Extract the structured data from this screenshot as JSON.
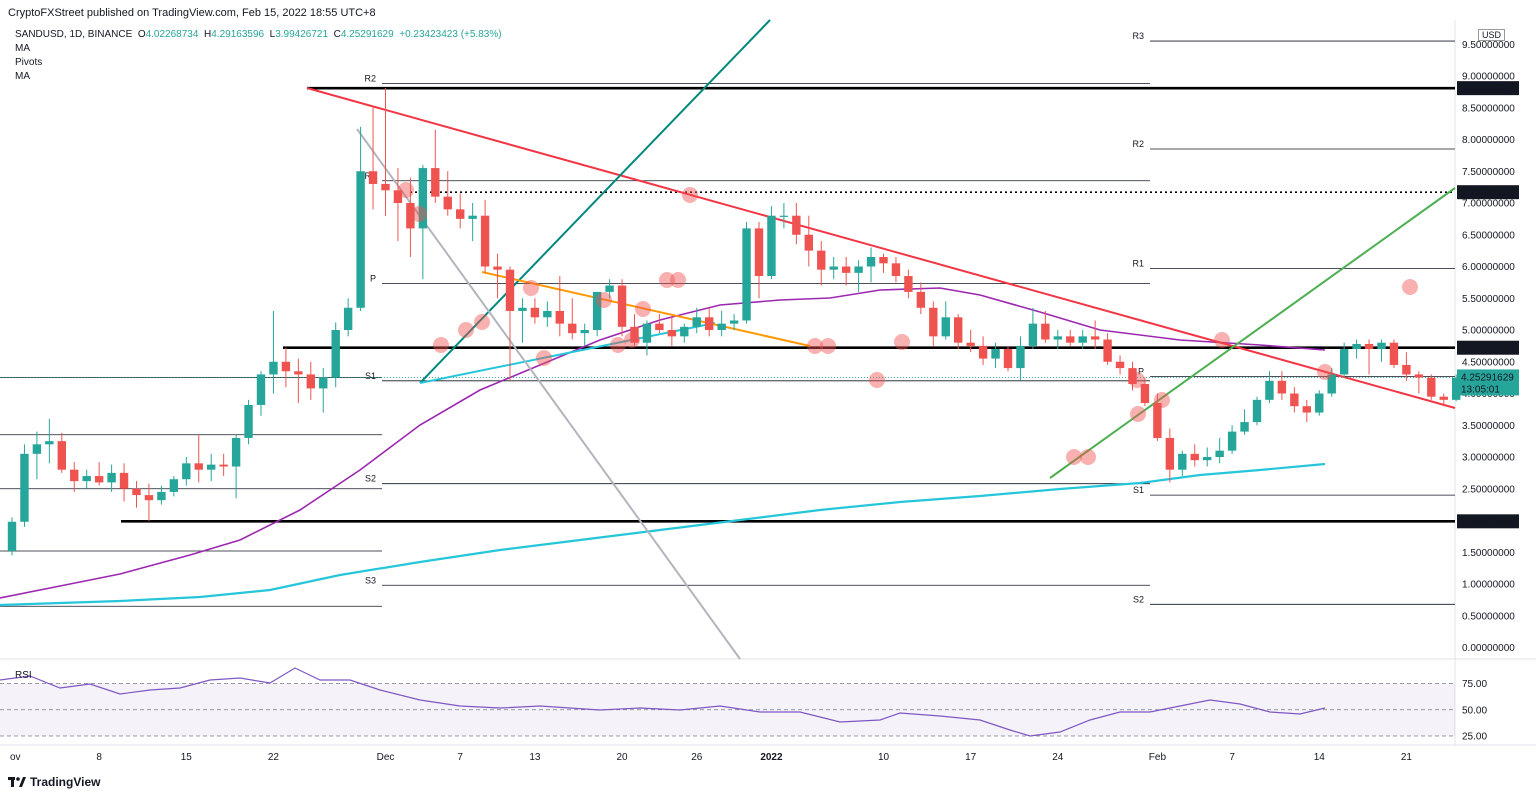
{
  "header": {
    "publisher": "CryptoFXStreet published on TradingView.com, Feb 15, 2022 18:55 UTC+8"
  },
  "legend": {
    "symbol": "SANDUSD, 1D, BINANCE",
    "ohlc": {
      "o_label": "O",
      "o": "4.02268734",
      "h_label": "H",
      "h": "4.29163596",
      "l_label": "L",
      "l": "3.99426721",
      "c_label": "C",
      "c": "4.25291629",
      "change": "+0.23423423 (+5.83%)"
    },
    "indicators": [
      "MA",
      "Pivots",
      "MA"
    ],
    "rsi_label": "RSI"
  },
  "currency": "USD",
  "footer": {
    "brand": "TradingView"
  },
  "colors": {
    "up": "#26a69a",
    "down": "#ef5350",
    "ma50": "#9c27b0",
    "ma200": "#26c6da",
    "resistance": "#f23645",
    "uptrend": "#4caf50",
    "teal_line": "#00897b",
    "grey_line": "#b2b5be",
    "orange_line": "#ff9800",
    "rsi": "#7e57c2"
  },
  "chart_data": {
    "type": "candlestick",
    "title": "SANDUSD, 1D, BINANCE",
    "ylim": [
      -0.1,
      9.75
    ],
    "y_ticks": [
      "0.00000000",
      "0.50000000",
      "1.00000000",
      "1.50000000",
      "2.00000000",
      "2.50000000",
      "3.00000000",
      "3.50000000",
      "4.00000000",
      "4.50000000",
      "5.00000000",
      "5.50000000",
      "6.00000000",
      "6.50000000",
      "7.00000000",
      "7.50000000",
      "8.00000000",
      "8.50000000",
      "9.00000000",
      "9.50000000"
    ],
    "x_ticks": [
      "ov",
      "8",
      "15",
      "22",
      "Dec",
      "7",
      "13",
      "20",
      "26",
      "2022",
      "10",
      "17",
      "24",
      "Feb",
      "7",
      "14",
      "21"
    ],
    "highlighted_levels": [
      {
        "label": "8.80878547",
        "value": 8.80878547
      },
      {
        "label": "7.17027123",
        "value": 7.17027123
      },
      {
        "label": "4.72085928",
        "value": 4.72085928
      },
      {
        "label": "1.98703440",
        "value": 1.9870344
      }
    ],
    "last_price": {
      "label": "4.25291629",
      "countdown": "13:05:01",
      "value": 4.25291629
    },
    "pivots": [
      {
        "period": "Nov",
        "levels": [
          {
            "name": "",
            "value": 3.35
          },
          {
            "name": "",
            "value": 2.5
          },
          {
            "name": "",
            "value": 1.52
          },
          {
            "name": "",
            "value": 0.65
          },
          {
            "name": "",
            "value": 4.25
          }
        ]
      },
      {
        "period": "Dec",
        "levels": [
          {
            "name": "R2",
            "value": 8.88
          },
          {
            "name": "R1",
            "value": 7.35
          },
          {
            "name": "P",
            "value": 5.73
          },
          {
            "name": "S1",
            "value": 4.2
          },
          {
            "name": "S2",
            "value": 2.58
          },
          {
            "name": "S3",
            "value": 0.98
          }
        ]
      },
      {
        "period": "Jan",
        "levels": [
          {
            "name": "R3",
            "value": 9.55
          },
          {
            "name": "R2",
            "value": 7.85
          },
          {
            "name": "R1",
            "value": 5.97
          },
          {
            "name": "P",
            "value": 4.27
          },
          {
            "name": "S1",
            "value": 2.4
          },
          {
            "name": "S2",
            "value": 0.68
          }
        ]
      }
    ],
    "candles": [
      {
        "date": "2021-11-01",
        "o": 1.52,
        "h": 2.05,
        "l": 1.45,
        "c": 1.98
      },
      {
        "date": "2021-11-02",
        "o": 1.98,
        "h": 3.2,
        "l": 1.9,
        "c": 3.05
      },
      {
        "date": "2021-11-03",
        "o": 3.05,
        "h": 3.4,
        "l": 2.65,
        "c": 3.2
      },
      {
        "date": "2021-11-04",
        "o": 3.2,
        "h": 3.6,
        "l": 2.9,
        "c": 3.25
      },
      {
        "date": "2021-11-05",
        "o": 3.25,
        "h": 3.38,
        "l": 2.75,
        "c": 2.8
      },
      {
        "date": "2021-11-06",
        "o": 2.8,
        "h": 2.92,
        "l": 2.45,
        "c": 2.62
      },
      {
        "date": "2021-11-07",
        "o": 2.62,
        "h": 2.8,
        "l": 2.5,
        "c": 2.7
      },
      {
        "date": "2021-11-08",
        "o": 2.7,
        "h": 2.92,
        "l": 2.55,
        "c": 2.6
      },
      {
        "date": "2021-11-09",
        "o": 2.6,
        "h": 2.88,
        "l": 2.45,
        "c": 2.75
      },
      {
        "date": "2021-11-10",
        "o": 2.75,
        "h": 2.9,
        "l": 2.3,
        "c": 2.5
      },
      {
        "date": "2021-11-11",
        "o": 2.5,
        "h": 2.62,
        "l": 2.2,
        "c": 2.4
      },
      {
        "date": "2021-11-12",
        "o": 2.4,
        "h": 2.58,
        "l": 1.99,
        "c": 2.32
      },
      {
        "date": "2021-11-13",
        "o": 2.32,
        "h": 2.55,
        "l": 2.25,
        "c": 2.45
      },
      {
        "date": "2021-11-14",
        "o": 2.45,
        "h": 2.7,
        "l": 2.38,
        "c": 2.65
      },
      {
        "date": "2021-11-15",
        "o": 2.65,
        "h": 3.0,
        "l": 2.55,
        "c": 2.9
      },
      {
        "date": "2021-11-16",
        "o": 2.9,
        "h": 3.35,
        "l": 2.6,
        "c": 2.8
      },
      {
        "date": "2021-11-17",
        "o": 2.8,
        "h": 3.05,
        "l": 2.62,
        "c": 2.88
      },
      {
        "date": "2021-11-18",
        "o": 2.88,
        "h": 3.05,
        "l": 2.7,
        "c": 2.85
      },
      {
        "date": "2021-11-19",
        "o": 2.85,
        "h": 3.35,
        "l": 2.35,
        "c": 3.3
      },
      {
        "date": "2021-11-20",
        "o": 3.3,
        "h": 3.9,
        "l": 3.2,
        "c": 3.82
      },
      {
        "date": "2021-11-21",
        "o": 3.82,
        "h": 4.35,
        "l": 3.65,
        "c": 4.3
      },
      {
        "date": "2021-11-22",
        "o": 4.3,
        "h": 5.3,
        "l": 4.0,
        "c": 4.5
      },
      {
        "date": "2021-11-23",
        "o": 4.5,
        "h": 4.72,
        "l": 4.1,
        "c": 4.35
      },
      {
        "date": "2021-11-24",
        "o": 4.35,
        "h": 4.55,
        "l": 3.85,
        "c": 4.3
      },
      {
        "date": "2021-11-25",
        "o": 4.3,
        "h": 4.5,
        "l": 3.9,
        "c": 4.08
      },
      {
        "date": "2021-11-26",
        "o": 4.08,
        "h": 4.4,
        "l": 3.7,
        "c": 4.25
      },
      {
        "date": "2021-11-27",
        "o": 4.25,
        "h": 5.12,
        "l": 4.1,
        "c": 5.0
      },
      {
        "date": "2021-11-28",
        "o": 5.0,
        "h": 5.5,
        "l": 4.9,
        "c": 5.35
      },
      {
        "date": "2021-11-29",
        "o": 5.35,
        "h": 8.2,
        "l": 5.3,
        "c": 7.5
      },
      {
        "date": "2021-11-30",
        "o": 7.5,
        "h": 8.5,
        "l": 6.9,
        "c": 7.3
      },
      {
        "date": "2021-12-01",
        "o": 7.3,
        "h": 8.81,
        "l": 6.8,
        "c": 7.2
      },
      {
        "date": "2021-12-02",
        "o": 7.2,
        "h": 7.55,
        "l": 6.4,
        "c": 7.0
      },
      {
        "date": "2021-12-03",
        "o": 7.0,
        "h": 7.4,
        "l": 6.15,
        "c": 6.6
      },
      {
        "date": "2021-12-04",
        "o": 6.6,
        "h": 7.6,
        "l": 5.8,
        "c": 7.55
      },
      {
        "date": "2021-12-05",
        "o": 7.55,
        "h": 8.15,
        "l": 7.0,
        "c": 7.1
      },
      {
        "date": "2021-12-06",
        "o": 7.1,
        "h": 7.5,
        "l": 6.8,
        "c": 6.9
      },
      {
        "date": "2021-12-07",
        "o": 6.9,
        "h": 7.15,
        "l": 6.6,
        "c": 6.75
      },
      {
        "date": "2021-12-08",
        "o": 6.75,
        "h": 7.0,
        "l": 6.4,
        "c": 6.8
      },
      {
        "date": "2021-12-09",
        "o": 6.8,
        "h": 7.05,
        "l": 5.9,
        "c": 6.0
      },
      {
        "date": "2021-12-10",
        "o": 6.0,
        "h": 6.2,
        "l": 5.5,
        "c": 5.95
      },
      {
        "date": "2021-12-11",
        "o": 5.95,
        "h": 6.0,
        "l": 4.2,
        "c": 5.3
      },
      {
        "date": "2021-12-12",
        "o": 5.3,
        "h": 5.5,
        "l": 4.8,
        "c": 5.35
      },
      {
        "date": "2021-12-13",
        "o": 5.35,
        "h": 5.5,
        "l": 5.1,
        "c": 5.2
      },
      {
        "date": "2021-12-14",
        "o": 5.2,
        "h": 5.45,
        "l": 5.05,
        "c": 5.3
      },
      {
        "date": "2021-12-15",
        "o": 5.3,
        "h": 5.85,
        "l": 4.9,
        "c": 5.1
      },
      {
        "date": "2021-12-16",
        "o": 5.1,
        "h": 5.5,
        "l": 4.85,
        "c": 4.95
      },
      {
        "date": "2021-12-17",
        "o": 4.95,
        "h": 5.1,
        "l": 4.75,
        "c": 5.0
      },
      {
        "date": "2021-12-18",
        "o": 5.0,
        "h": 5.6,
        "l": 4.9,
        "c": 5.6
      },
      {
        "date": "2021-12-19",
        "o": 5.6,
        "h": 5.8,
        "l": 5.5,
        "c": 5.7
      },
      {
        "date": "2021-12-20",
        "o": 5.7,
        "h": 5.8,
        "l": 4.9,
        "c": 5.05
      },
      {
        "date": "2021-12-21",
        "o": 5.05,
        "h": 5.25,
        "l": 4.75,
        "c": 4.8
      },
      {
        "date": "2021-12-22",
        "o": 4.8,
        "h": 5.15,
        "l": 4.6,
        "c": 5.1
      },
      {
        "date": "2021-12-23",
        "o": 5.1,
        "h": 5.25,
        "l": 4.95,
        "c": 5.0
      },
      {
        "date": "2021-12-24",
        "o": 5.0,
        "h": 5.2,
        "l": 4.75,
        "c": 4.9
      },
      {
        "date": "2021-12-25",
        "o": 4.9,
        "h": 5.1,
        "l": 4.8,
        "c": 5.05
      },
      {
        "date": "2021-12-26",
        "o": 5.05,
        "h": 5.35,
        "l": 4.95,
        "c": 5.2
      },
      {
        "date": "2021-12-27",
        "o": 5.2,
        "h": 5.35,
        "l": 4.9,
        "c": 5.0
      },
      {
        "date": "2021-12-28",
        "o": 5.0,
        "h": 5.3,
        "l": 4.9,
        "c": 5.1
      },
      {
        "date": "2021-12-29",
        "o": 5.1,
        "h": 5.25,
        "l": 5.0,
        "c": 5.15
      },
      {
        "date": "2021-12-30",
        "o": 5.15,
        "h": 6.7,
        "l": 5.1,
        "c": 6.6
      },
      {
        "date": "2021-12-31",
        "o": 6.6,
        "h": 6.7,
        "l": 5.5,
        "c": 5.85
      },
      {
        "date": "2022-01-01",
        "o": 5.85,
        "h": 6.95,
        "l": 5.8,
        "c": 6.8
      },
      {
        "date": "2022-01-02",
        "o": 6.8,
        "h": 7.0,
        "l": 6.6,
        "c": 6.8
      },
      {
        "date": "2022-01-03",
        "o": 6.8,
        "h": 7.0,
        "l": 6.35,
        "c": 6.5
      },
      {
        "date": "2022-01-04",
        "o": 6.5,
        "h": 6.8,
        "l": 6.0,
        "c": 6.25
      },
      {
        "date": "2022-01-05",
        "o": 6.25,
        "h": 6.4,
        "l": 5.7,
        "c": 5.95
      },
      {
        "date": "2022-01-06",
        "o": 5.95,
        "h": 6.15,
        "l": 5.8,
        "c": 6.0
      },
      {
        "date": "2022-01-07",
        "o": 6.0,
        "h": 6.15,
        "l": 5.7,
        "c": 5.9
      },
      {
        "date": "2022-01-08",
        "o": 5.9,
        "h": 6.1,
        "l": 5.6,
        "c": 6.0
      },
      {
        "date": "2022-01-09",
        "o": 6.0,
        "h": 6.3,
        "l": 5.75,
        "c": 6.15
      },
      {
        "date": "2022-01-10",
        "o": 6.15,
        "h": 6.2,
        "l": 5.9,
        "c": 6.05
      },
      {
        "date": "2022-01-11",
        "o": 6.05,
        "h": 6.15,
        "l": 5.75,
        "c": 5.85
      },
      {
        "date": "2022-01-12",
        "o": 5.85,
        "h": 5.95,
        "l": 5.5,
        "c": 5.6
      },
      {
        "date": "2022-01-13",
        "o": 5.6,
        "h": 5.75,
        "l": 5.25,
        "c": 5.35
      },
      {
        "date": "2022-01-14",
        "o": 5.35,
        "h": 5.45,
        "l": 4.75,
        "c": 4.9
      },
      {
        "date": "2022-01-15",
        "o": 4.9,
        "h": 5.45,
        "l": 4.85,
        "c": 5.2
      },
      {
        "date": "2022-01-16",
        "o": 5.2,
        "h": 5.25,
        "l": 4.7,
        "c": 4.8
      },
      {
        "date": "2022-01-17",
        "o": 4.8,
        "h": 5.0,
        "l": 4.65,
        "c": 4.75
      },
      {
        "date": "2022-01-18",
        "o": 4.75,
        "h": 4.9,
        "l": 4.45,
        "c": 4.55
      },
      {
        "date": "2022-01-19",
        "o": 4.55,
        "h": 4.8,
        "l": 4.4,
        "c": 4.7
      },
      {
        "date": "2022-01-20",
        "o": 4.7,
        "h": 4.75,
        "l": 4.35,
        "c": 4.4
      },
      {
        "date": "2022-01-21",
        "o": 4.4,
        "h": 4.9,
        "l": 4.2,
        "c": 4.75
      },
      {
        "date": "2022-01-22",
        "o": 4.75,
        "h": 5.35,
        "l": 4.7,
        "c": 5.1
      },
      {
        "date": "2022-01-23",
        "o": 5.1,
        "h": 5.3,
        "l": 4.8,
        "c": 4.85
      },
      {
        "date": "2022-01-24",
        "o": 4.85,
        "h": 5.0,
        "l": 4.7,
        "c": 4.9
      },
      {
        "date": "2022-01-25",
        "o": 4.9,
        "h": 5.0,
        "l": 4.75,
        "c": 4.8
      },
      {
        "date": "2022-01-26",
        "o": 4.8,
        "h": 5.0,
        "l": 4.7,
        "c": 4.9
      },
      {
        "date": "2022-01-27",
        "o": 4.9,
        "h": 5.15,
        "l": 4.7,
        "c": 4.85
      },
      {
        "date": "2022-01-28",
        "o": 4.85,
        "h": 4.95,
        "l": 4.45,
        "c": 4.5
      },
      {
        "date": "2022-01-29",
        "o": 4.5,
        "h": 4.6,
        "l": 4.3,
        "c": 4.4
      },
      {
        "date": "2022-01-30",
        "o": 4.4,
        "h": 4.5,
        "l": 4.05,
        "c": 4.15
      },
      {
        "date": "2022-01-31",
        "o": 4.15,
        "h": 4.25,
        "l": 3.8,
        "c": 3.85
      },
      {
        "date": "2022-02-01",
        "o": 3.85,
        "h": 4.0,
        "l": 3.25,
        "c": 3.3
      },
      {
        "date": "2022-02-02",
        "o": 3.3,
        "h": 3.45,
        "l": 2.6,
        "c": 2.8
      },
      {
        "date": "2022-02-03",
        "o": 2.8,
        "h": 3.1,
        "l": 2.7,
        "c": 3.05
      },
      {
        "date": "2022-02-04",
        "o": 3.05,
        "h": 3.2,
        "l": 2.85,
        "c": 2.95
      },
      {
        "date": "2022-02-05",
        "o": 2.95,
        "h": 3.15,
        "l": 2.85,
        "c": 3.0
      },
      {
        "date": "2022-02-06",
        "o": 3.0,
        "h": 3.3,
        "l": 2.9,
        "c": 3.1
      },
      {
        "date": "2022-02-07",
        "o": 3.1,
        "h": 3.5,
        "l": 3.05,
        "c": 3.4
      },
      {
        "date": "2022-02-08",
        "o": 3.4,
        "h": 3.75,
        "l": 3.35,
        "c": 3.55
      },
      {
        "date": "2022-02-09",
        "o": 3.55,
        "h": 3.95,
        "l": 3.5,
        "c": 3.9
      },
      {
        "date": "2022-02-10",
        "o": 3.9,
        "h": 4.35,
        "l": 3.85,
        "c": 4.2
      },
      {
        "date": "2022-02-11",
        "o": 4.2,
        "h": 4.35,
        "l": 3.9,
        "c": 4.0
      },
      {
        "date": "2022-02-12",
        "o": 4.0,
        "h": 4.1,
        "l": 3.7,
        "c": 3.8
      },
      {
        "date": "2022-02-13",
        "o": 3.8,
        "h": 3.9,
        "l": 3.55,
        "c": 3.7
      },
      {
        "date": "2022-02-14",
        "o": 3.7,
        "h": 4.05,
        "l": 3.65,
        "c": 4.0
      },
      {
        "date": "2022-02-15",
        "o": 4.0,
        "h": 4.4,
        "l": 3.95,
        "c": 4.3
      },
      {
        "date": "2022-02-16",
        "o": 4.3,
        "h": 4.8,
        "l": 4.25,
        "c": 4.7
      },
      {
        "date": "2022-02-17",
        "o": 4.7,
        "h": 4.85,
        "l": 4.55,
        "c": 4.78
      },
      {
        "date": "2022-02-18",
        "o": 4.78,
        "h": 4.85,
        "l": 4.3,
        "c": 4.7
      },
      {
        "date": "2022-02-19",
        "o": 4.7,
        "h": 4.85,
        "l": 4.5,
        "c": 4.8
      },
      {
        "date": "2022-02-20",
        "o": 4.8,
        "h": 4.85,
        "l": 4.4,
        "c": 4.45
      },
      {
        "date": "2022-02-21",
        "o": 4.45,
        "h": 4.65,
        "l": 4.2,
        "c": 4.3
      },
      {
        "date": "2022-02-22",
        "o": 4.3,
        "h": 4.35,
        "l": 4.0,
        "c": 4.25
      },
      {
        "date": "2022-02-23",
        "o": 4.25,
        "h": 4.3,
        "l": 3.9,
        "c": 3.95
      },
      {
        "date": "2022-02-24",
        "o": 3.95,
        "h": 4.0,
        "l": 3.8,
        "c": 3.9
      },
      {
        "date": "2022-02-25",
        "o": 3.9,
        "h": 4.3,
        "l": 3.88,
        "c": 4.25
      }
    ]
  }
}
